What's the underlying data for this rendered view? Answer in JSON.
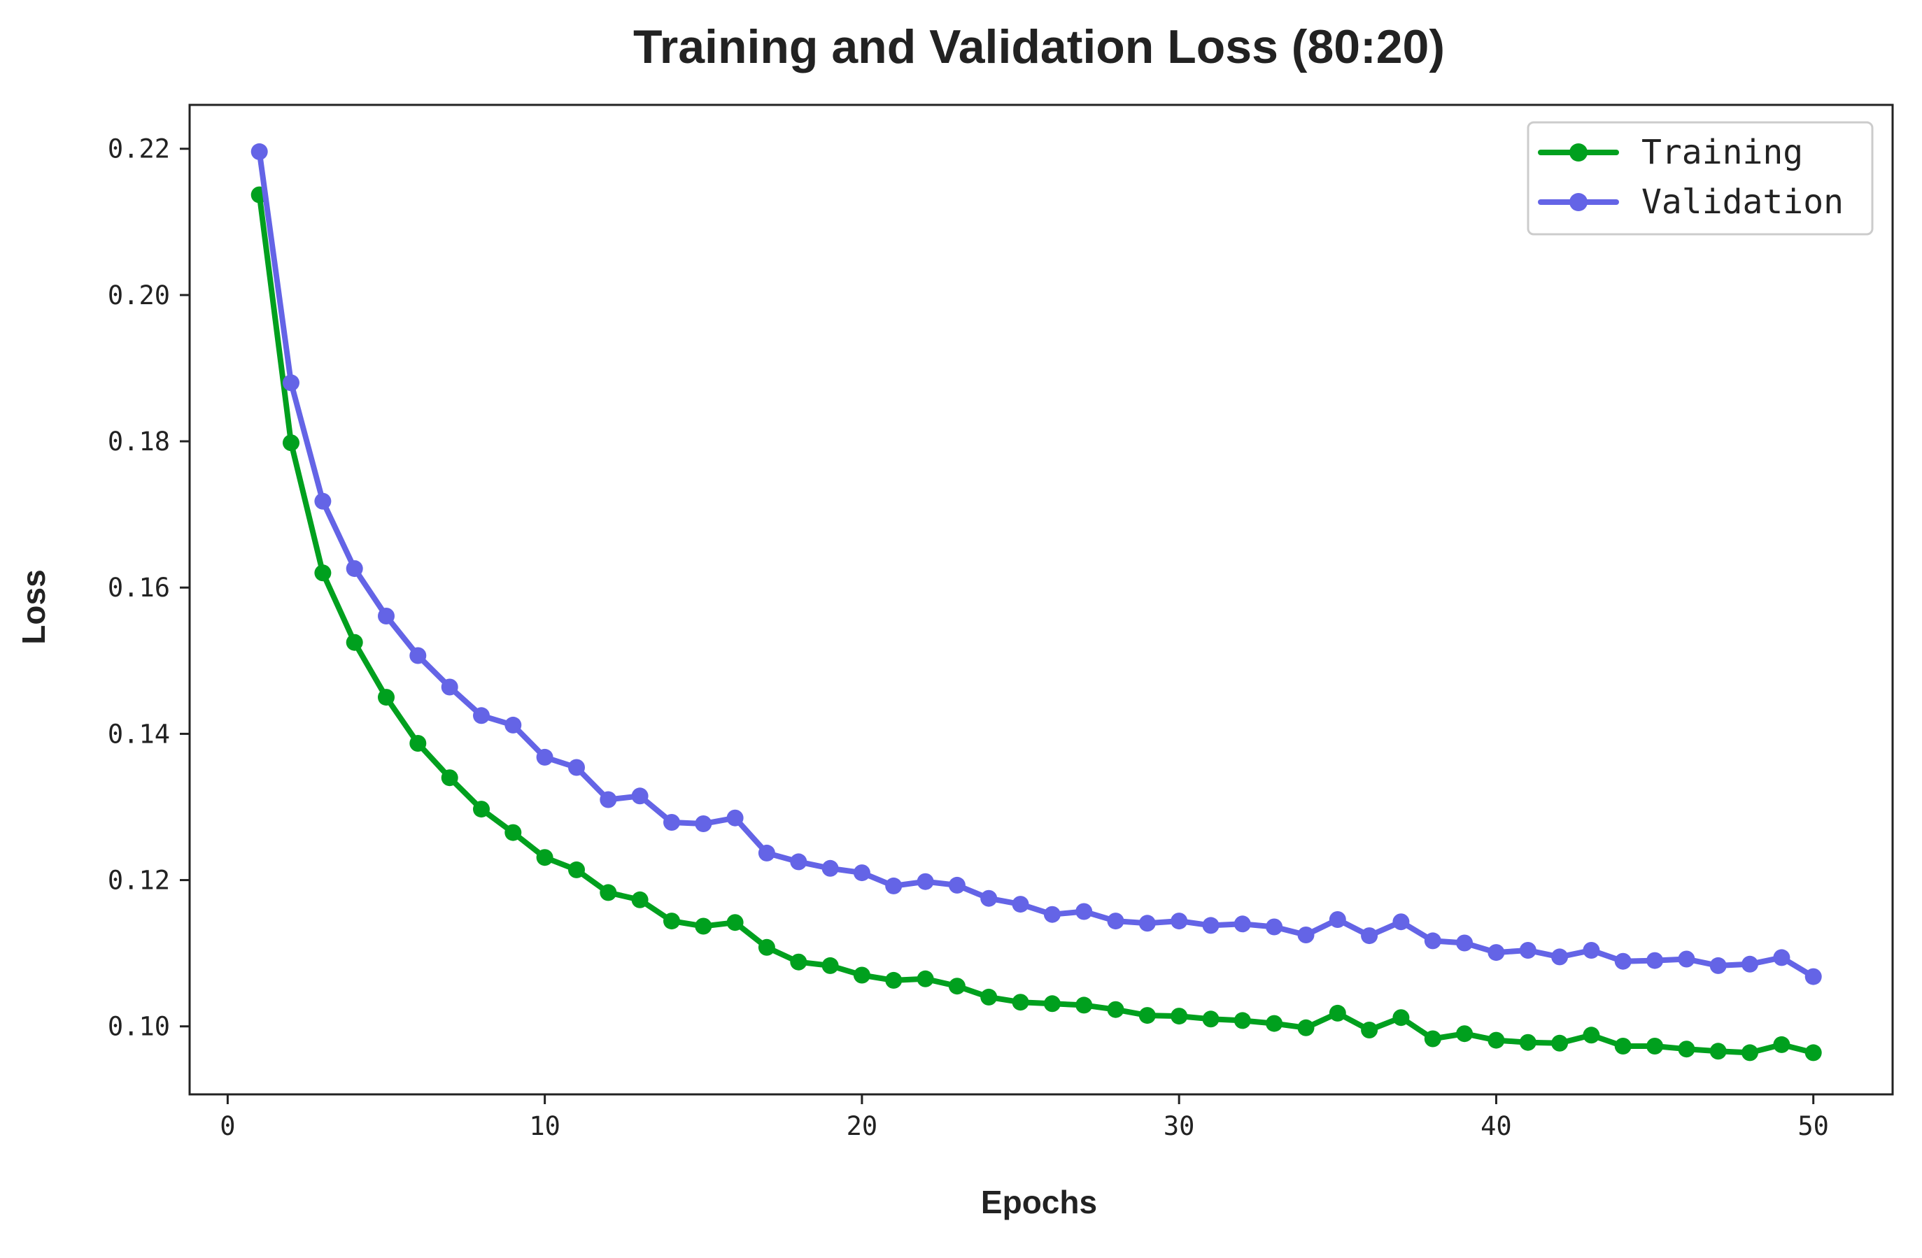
{
  "chart_data": {
    "type": "line",
    "title": "Training and Validation Loss (80:20)",
    "xlabel": "Epochs",
    "ylabel": "Loss",
    "xlim": [
      -1.2,
      52.5
    ],
    "ylim": [
      0.0907,
      0.226
    ],
    "xticks": [
      0,
      10,
      20,
      30,
      40,
      50
    ],
    "xtick_labels": [
      "0",
      "10",
      "20",
      "30",
      "40",
      "50"
    ],
    "yticks": [
      0.1,
      0.12,
      0.14,
      0.16,
      0.18,
      0.2,
      0.22
    ],
    "ytick_labels": [
      "0.10",
      "0.12",
      "0.14",
      "0.16",
      "0.18",
      "0.20",
      "0.22"
    ],
    "grid": false,
    "legend_position": "top-right",
    "x": [
      1,
      2,
      3,
      4,
      5,
      6,
      7,
      8,
      9,
      10,
      11,
      12,
      13,
      14,
      15,
      16,
      17,
      18,
      19,
      20,
      21,
      22,
      23,
      24,
      25,
      26,
      27,
      28,
      29,
      30,
      31,
      32,
      33,
      34,
      35,
      36,
      37,
      38,
      39,
      40,
      41,
      42,
      43,
      44,
      45,
      46,
      47,
      48,
      49,
      50
    ],
    "series": [
      {
        "name": "Training",
        "color": "#00a01e",
        "values": [
          0.2137,
          0.1798,
          0.162,
          0.1525,
          0.145,
          0.1387,
          0.134,
          0.1297,
          0.1265,
          0.1231,
          0.1214,
          0.1183,
          0.1173,
          0.1144,
          0.1137,
          0.1142,
          0.1108,
          0.1088,
          0.1083,
          0.107,
          0.1063,
          0.1065,
          0.1055,
          0.104,
          0.1033,
          0.1031,
          0.1029,
          0.1023,
          0.1015,
          0.1014,
          0.101,
          0.1008,
          0.1004,
          0.0998,
          0.1018,
          0.0995,
          0.1012,
          0.0983,
          0.099,
          0.0981,
          0.0978,
          0.0977,
          0.0988,
          0.0973,
          0.0973,
          0.0969,
          0.0966,
          0.0964,
          0.0975,
          0.0964
        ]
      },
      {
        "name": "Validation",
        "color": "#6464e6",
        "values": [
          0.2196,
          0.188,
          0.1718,
          0.1626,
          0.1561,
          0.1507,
          0.1464,
          0.1425,
          0.1412,
          0.1368,
          0.1354,
          0.131,
          0.1315,
          0.1279,
          0.1277,
          0.1285,
          0.1237,
          0.1225,
          0.1216,
          0.121,
          0.1192,
          0.1198,
          0.1193,
          0.1175,
          0.1167,
          0.1153,
          0.1157,
          0.1144,
          0.1141,
          0.1144,
          0.1138,
          0.114,
          0.1136,
          0.1125,
          0.1146,
          0.1124,
          0.1143,
          0.1117,
          0.1114,
          0.1101,
          0.1104,
          0.1095,
          0.1104,
          0.1089,
          0.109,
          0.1092,
          0.1083,
          0.1085,
          0.1094,
          0.1068
        ]
      }
    ]
  }
}
